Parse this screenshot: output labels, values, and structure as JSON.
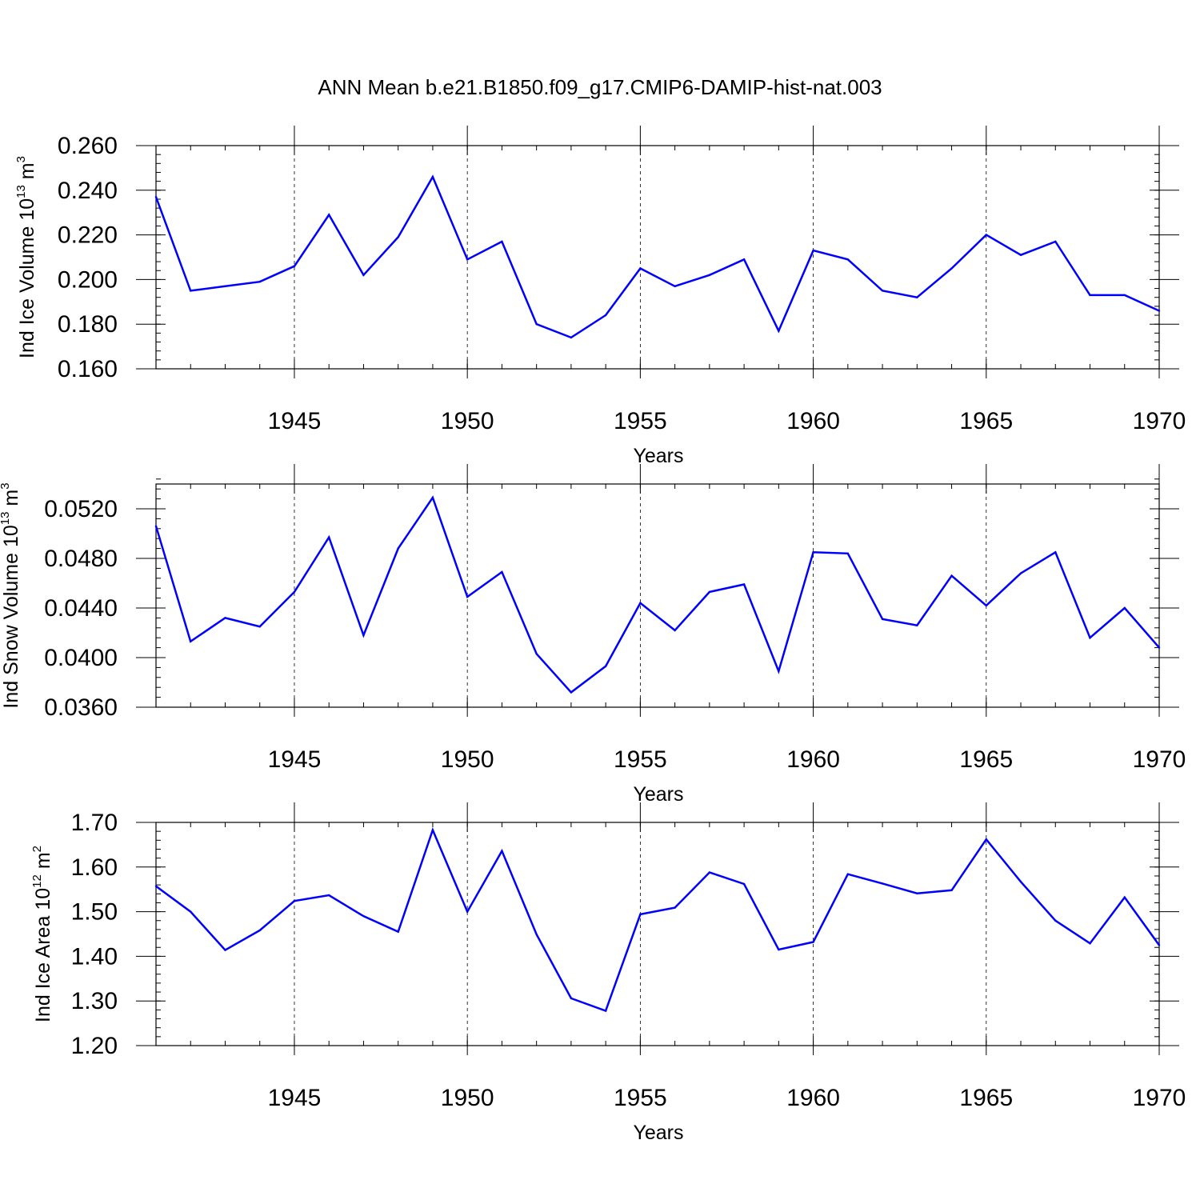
{
  "figure_title": "ANN Mean b.e21.B1850.f09_g17.CMIP6-DAMIP-hist-nat.003",
  "colors": {
    "line": "#0000ff",
    "axes": "#000000",
    "grid": "#000000"
  },
  "chart_data": [
    {
      "type": "line",
      "name": "ice-volume",
      "ylabel": {
        "main": "Ind Ice Volume 10",
        "exp": "13",
        "unit": " m",
        "unit_exp": "3"
      },
      "xlabel": "Years",
      "xlim": [
        1941,
        1970
      ],
      "ylim": [
        0.16,
        0.26
      ],
      "yticks": [
        0.16,
        0.18,
        0.2,
        0.22,
        0.24,
        0.26
      ],
      "ytick_labels": [
        "0.160",
        "0.180",
        "0.200",
        "0.220",
        "0.240",
        "0.260"
      ],
      "yminor_step": 0.004,
      "xticks": [
        1945,
        1950,
        1955,
        1960,
        1965,
        1970
      ],
      "xtick_labels": [
        "1945",
        "1950",
        "1955",
        "1960",
        "1965",
        "1970"
      ],
      "grid_x": true,
      "x": [
        1941,
        1942,
        1943,
        1944,
        1945,
        1946,
        1947,
        1948,
        1949,
        1950,
        1951,
        1952,
        1953,
        1954,
        1955,
        1956,
        1957,
        1958,
        1959,
        1960,
        1961,
        1962,
        1963,
        1964,
        1965,
        1966,
        1967,
        1968,
        1969,
        1970
      ],
      "values": [
        0.237,
        0.195,
        0.197,
        0.199,
        0.206,
        0.229,
        0.202,
        0.219,
        0.246,
        0.209,
        0.217,
        0.18,
        0.174,
        0.184,
        0.205,
        0.197,
        0.202,
        0.209,
        0.177,
        0.213,
        0.209,
        0.195,
        0.192,
        0.205,
        0.22,
        0.211,
        0.217,
        0.193,
        0.193,
        0.186
      ]
    },
    {
      "type": "line",
      "name": "snow-volume",
      "ylabel": {
        "main": "Ind Snow Volume 10",
        "exp": "13",
        "unit": " m",
        "unit_exp": "3"
      },
      "xlabel": "Years",
      "xlim": [
        1941,
        1970
      ],
      "ylim": [
        0.036,
        0.054
      ],
      "yticks": [
        0.036,
        0.04,
        0.044,
        0.048,
        0.052
      ],
      "ytick_labels": [
        "0.0360",
        "0.0400",
        "0.0440",
        "0.0480",
        "0.0520"
      ],
      "yminor_step": 0.0008,
      "xticks": [
        1945,
        1950,
        1955,
        1960,
        1965,
        1970
      ],
      "xtick_labels": [
        "1945",
        "1950",
        "1955",
        "1960",
        "1965",
        "1970"
      ],
      "grid_x": true,
      "x": [
        1941,
        1942,
        1943,
        1944,
        1945,
        1946,
        1947,
        1948,
        1949,
        1950,
        1951,
        1952,
        1953,
        1954,
        1955,
        1956,
        1957,
        1958,
        1959,
        1960,
        1961,
        1962,
        1963,
        1964,
        1965,
        1966,
        1967,
        1968,
        1969,
        1970
      ],
      "values": [
        0.0506,
        0.0413,
        0.0432,
        0.0425,
        0.0453,
        0.0497,
        0.0418,
        0.0488,
        0.0529,
        0.0449,
        0.0469,
        0.0403,
        0.0372,
        0.0393,
        0.0444,
        0.0422,
        0.0453,
        0.0459,
        0.0389,
        0.0485,
        0.0484,
        0.0431,
        0.0426,
        0.0466,
        0.0442,
        0.0468,
        0.0485,
        0.0416,
        0.044,
        0.0408
      ]
    },
    {
      "type": "line",
      "name": "ice-area",
      "ylabel": {
        "main": "Ind Ice Area 10",
        "exp": "12",
        "unit": " m",
        "unit_exp": "2"
      },
      "xlabel": "Years",
      "xlim": [
        1941,
        1970
      ],
      "ylim": [
        1.2,
        1.7
      ],
      "yticks": [
        1.2,
        1.3,
        1.4,
        1.5,
        1.6,
        1.7
      ],
      "ytick_labels": [
        "1.20",
        "1.30",
        "1.40",
        "1.50",
        "1.60",
        "1.70"
      ],
      "yminor_step": 0.02,
      "xticks": [
        1945,
        1950,
        1955,
        1960,
        1965,
        1970
      ],
      "xtick_labels": [
        "1945",
        "1950",
        "1955",
        "1960",
        "1965",
        "1970"
      ],
      "grid_x": true,
      "x": [
        1941,
        1942,
        1943,
        1944,
        1945,
        1946,
        1947,
        1948,
        1949,
        1950,
        1951,
        1952,
        1953,
        1954,
        1955,
        1956,
        1957,
        1958,
        1959,
        1960,
        1961,
        1962,
        1963,
        1964,
        1965,
        1966,
        1967,
        1968,
        1969,
        1970
      ],
      "values": [
        1.557,
        1.5,
        1.414,
        1.458,
        1.524,
        1.537,
        1.49,
        1.455,
        1.683,
        1.5,
        1.636,
        1.449,
        1.306,
        1.278,
        1.494,
        1.509,
        1.588,
        1.562,
        1.415,
        1.432,
        1.584,
        1.563,
        1.541,
        1.548,
        1.662,
        1.567,
        1.48,
        1.429,
        1.532,
        1.425
      ]
    }
  ]
}
